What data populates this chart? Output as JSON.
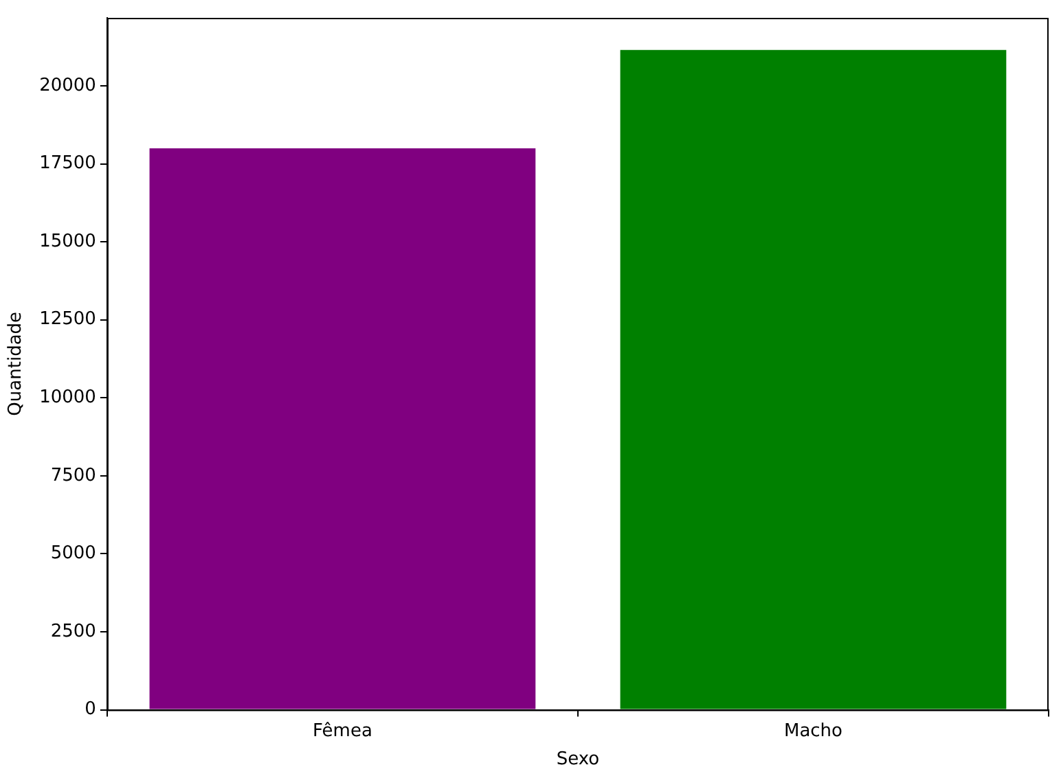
{
  "chart_data": {
    "type": "bar",
    "xlabel": "Sexo",
    "ylabel": "Quantidade",
    "categories": [
      "Fêmea",
      "Macho"
    ],
    "values": [
      18000,
      21150
    ],
    "colors": [
      "#800080",
      "#008000"
    ],
    "ylim": [
      0,
      22180
    ],
    "yticks": [
      0,
      2500,
      5000,
      7500,
      10000,
      12500,
      15000,
      17500,
      20000
    ],
    "grid": false,
    "legend": false
  }
}
